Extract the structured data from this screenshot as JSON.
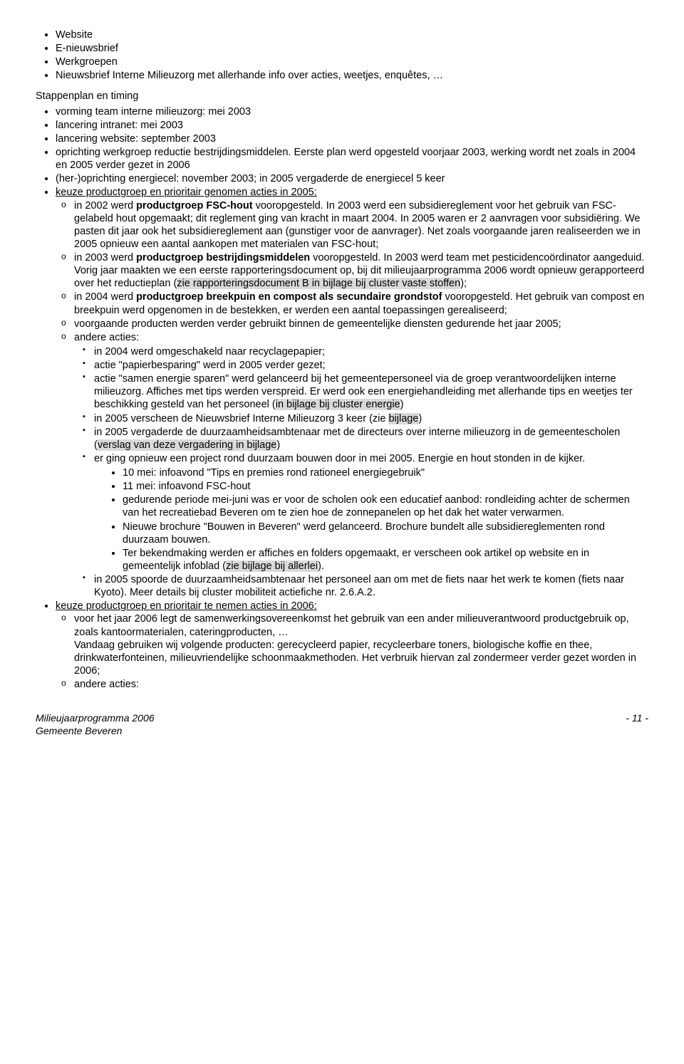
{
  "top_bullets": [
    "Website",
    "E-nieuwsbrief",
    "Werkgroepen",
    "Nieuwsbrief Interne Milieuzorg met allerhande info over acties, weetjes, enquêtes, …"
  ],
  "section_title": "Stappenplan en timing",
  "b1": "vorming team interne milieuzorg: mei 2003",
  "b2": "lancering intranet: mei 2003",
  "b3": "lancering website: september 2003",
  "b4": "oprichting werkgroep reductie bestrijdingsmiddelen.  Eerste plan werd opgesteld voorjaar 2003, werking wordt net zoals in 2004 en 2005 verder gezet in 2006",
  "b5": "(her-)oprichting energiecel: november 2003; in 2005 vergaderde de energiecel 5 keer",
  "b6_label": "keuze productgroep en prioritair genomen acties in 2005:",
  "c1_a": "in 2002 werd ",
  "c1_b": "productgroep FSC-hout",
  "c1_c": " vooropgesteld.  In 2003 werd een subsidiereglement voor het gebruik van FSC-gelabeld hout opgemaakt; dit reglement ging van kracht in maart 2004.  In 2005 waren er 2 aanvragen voor subsidiëring.  We pasten dit jaar ook het subsidiereglement aan (gunstiger voor de aanvrager).  Net zoals voorgaande jaren realiseerden we in 2005 opnieuw een aantal aankopen met materialen van FSC-hout;",
  "c2_a": "in 2003 werd ",
  "c2_b": "productgroep bestrijdingsmiddelen",
  "c2_c": " vooropgesteld.  In 2003 werd team met pesticidencoördinator aangeduid.  Vorig jaar maakten we een eerste rapporteringsdocument op, bij dit milieujaarprogramma 2006 wordt opnieuw gerapporteerd over het reductieplan (",
  "c2_hl": "zie rapporteringsdocument B in bijlage bij cluster vaste stoffen",
  "c2_d": ");",
  "c3_a": "in 2004 werd ",
  "c3_b": "productgroep breekpuin en compost als secundaire grondstof",
  "c3_c": " vooropgesteld.  Het gebruik van compost en breekpuin werd opgenomen in de bestekken, er werden een aantal toepassingen gerealiseerd;",
  "c4": "voorgaande producten werden verder gebruikt binnen de gemeentelijke diensten gedurende het jaar 2005;",
  "c5": "andere acties:",
  "s1": "in 2004 werd omgeschakeld naar recyclagepapier;",
  "s2": "actie \"papierbesparing\" werd in 2005 verder gezet;",
  "s3_a": "actie \"samen energie sparen\" werd gelanceerd bij het gemeentepersoneel via de groep verantwoordelijken interne milieuzorg.  Affiches met tips werden verspreid.  Er werd ook een energiehandleiding met allerhande tips en weetjes ter beschikking gesteld van het personeel (",
  "s3_hl": "in bijlage bij cluster energie",
  "s3_b": ")",
  "s4_a": "in 2005 verscheen de Nieuwsbrief Interne Milieuzorg 3 keer (zie ",
  "s4_hl": "bijlage",
  "s4_b": ")",
  "s5_a": "in 2005 vergaderde de duurzaamheidsambtenaar met de directeurs over interne milieuzorg in de gemeentescholen (",
  "s5_hl": "verslag van deze vergadering in bijlage",
  "s5_b": ")",
  "s6": "er ging opnieuw een project rond duurzaam bouwen door in mei 2005.  Energie en hout stonden in de kijker.",
  "bb1": "10 mei: infoavond \"Tips en premies rond rationeel energiegebruik\"",
  "bb2": "11 mei: infoavond FSC-hout",
  "bb3": "gedurende periode mei-juni was er voor de scholen ook een educatief aanbod: rondleiding achter de schermen van het recreatiebad Beveren om te zien hoe de zonnepanelen op het dak het water verwarmen.",
  "bb4": "Nieuwe brochure \"Bouwen in Beveren\" werd gelanceerd.  Brochure bundelt alle subsidiereglementen rond duurzaam bouwen.",
  "bb5_a": "Ter bekendmaking werden er affiches en folders opgemaakt, er verscheen ook artikel op website en in gemeentelijk infoblad (",
  "bb5_hl": "zie bijlage bij allerlei",
  "bb5_b": ").",
  "s7": "in 2005 spoorde de duurzaamheidsambtenaar het personeel aan om met de fiets naar het werk te komen (fiets naar Kyoto).  Meer details bij cluster mobiliteit actiefiche nr. 2.6.A.2.",
  "b7_label": "keuze productgroep en prioritair te nemen acties in 2006:",
  "d1": "voor het jaar 2006 legt de samenwerkingsovereenkomst het gebruik van een ander milieuverantwoord productgebruik op, zoals kantoormaterialen, cateringproducten, …\nVandaag gebruiken wij volgende producten: gerecycleerd papier, recycleerbare toners, biologische koffie en thee, drinkwaterfonteinen, milieuvriendelijke schoonmaakmethoden.  Het verbruik hiervan zal zondermeer verder gezet worden in 2006;",
  "d2": "andere acties:",
  "footer_left1": "Milieujaarprogramma 2006",
  "footer_left2": "Gemeente Beveren",
  "footer_right": "- 11 -"
}
